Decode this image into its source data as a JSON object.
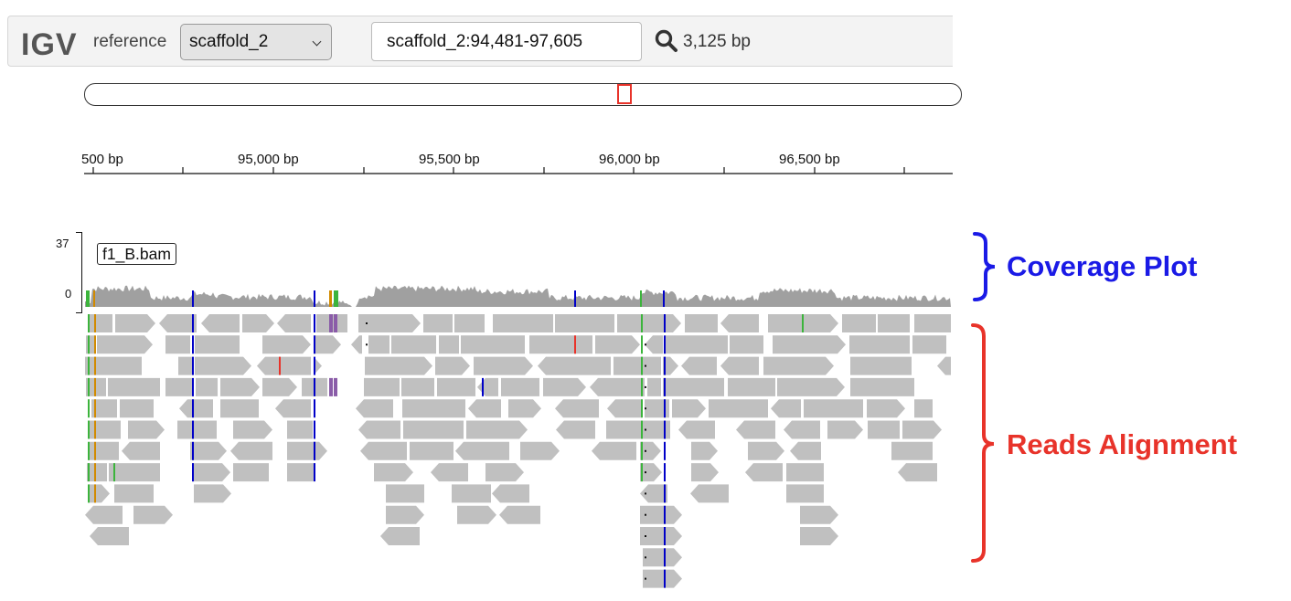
{
  "app": {
    "logo": "IGV",
    "reference_label": "reference",
    "reference_select": "scaffold_2",
    "locus": "scaffold_2:94,481-97,605",
    "bp_count": "3,125 bp"
  },
  "ruler": {
    "labels": [
      "500 bp",
      "95,000 bp",
      "95,500 bp",
      "96,000 bp",
      "96,500 bp"
    ]
  },
  "track": {
    "name": "f1_B.bam",
    "coverage_max": "37",
    "coverage_min": "0"
  },
  "annotations": {
    "coverage": "Coverage Plot",
    "reads": "Reads Alignment"
  },
  "colors": {
    "read": "#c0c0c0",
    "coverage": "#a0a0a0",
    "mismatch_c": "#0000c8",
    "mismatch_a": "#3cb43c",
    "mismatch_t": "#e8332a",
    "mismatch_g": "#d18a00",
    "insertion": "#8a5ca8",
    "brace_coverage": "#1a1ae6",
    "brace_reads": "#e8332a"
  }
}
